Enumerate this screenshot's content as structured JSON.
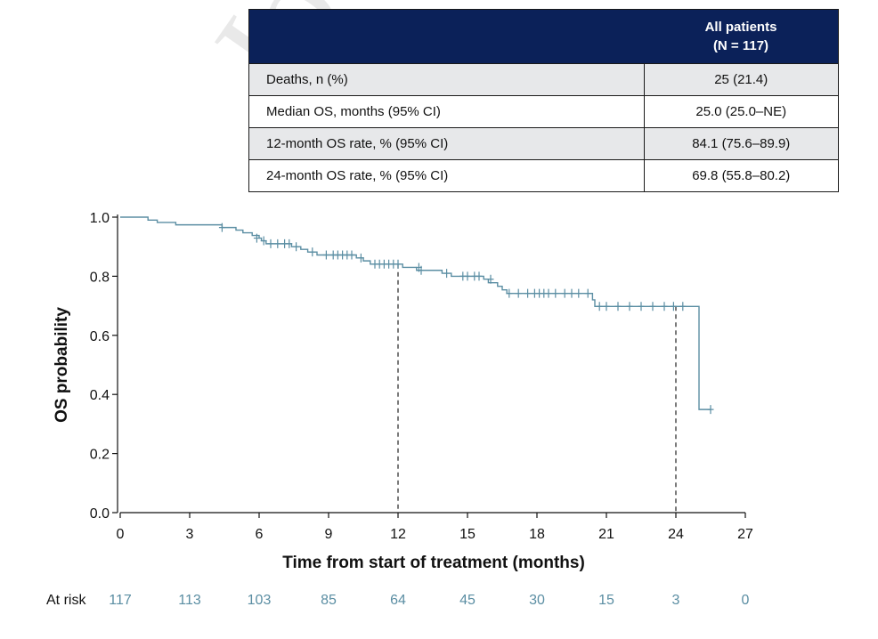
{
  "summary_table": {
    "header": {
      "line1": "All patients",
      "line2": "(N = 117)"
    },
    "rows": [
      {
        "label": "Deaths, n (%)",
        "value": "25 (21.4)"
      },
      {
        "label": "Median OS, months (95% CI)",
        "value": "25.0 (25.0–NE)"
      },
      {
        "label": "12-month OS rate, % (95% CI)",
        "value": "84.1 (75.6–89.9)"
      },
      {
        "label": "24-month OS rate, % (95% CI)",
        "value": "69.8 (55.8–80.2)"
      }
    ]
  },
  "at_risk": {
    "label": "At risk",
    "times": [
      0,
      3,
      6,
      9,
      12,
      15,
      18,
      21,
      24,
      27
    ],
    "values": [
      "117",
      "113",
      "103",
      "85",
      "64",
      "45",
      "30",
      "15",
      "3",
      "0"
    ]
  },
  "colors": {
    "curve": "#5b8ea3",
    "header_bg": "#0b2159",
    "shaded_row": "#e7e8ea",
    "at_risk_text": "#5b8ea3"
  },
  "chart_data": {
    "type": "line",
    "subtype": "kaplan-meier-step",
    "xlabel": "Time from start of treatment (months)",
    "ylabel": "OS probability",
    "xlim": [
      0,
      27
    ],
    "ylim": [
      0,
      1.0
    ],
    "xticks": [
      "0",
      "3",
      "6",
      "9",
      "12",
      "15",
      "18",
      "21",
      "24",
      "27"
    ],
    "yticks": [
      "0.0",
      "0.2",
      "0.4",
      "0.6",
      "0.8",
      "1.0"
    ],
    "series": [
      {
        "name": "All patients",
        "steps": [
          [
            0,
            1.0
          ],
          [
            1.2,
            0.99
          ],
          [
            1.6,
            0.982
          ],
          [
            2.4,
            0.974
          ],
          [
            4.4,
            0.965
          ],
          [
            5.0,
            0.956
          ],
          [
            5.3,
            0.947
          ],
          [
            5.7,
            0.938
          ],
          [
            6.0,
            0.929
          ],
          [
            6.1,
            0.92
          ],
          [
            6.3,
            0.91
          ],
          [
            7.4,
            0.9
          ],
          [
            7.8,
            0.891
          ],
          [
            8.1,
            0.882
          ],
          [
            8.5,
            0.872
          ],
          [
            10.2,
            0.862
          ],
          [
            10.5,
            0.852
          ],
          [
            10.8,
            0.841
          ],
          [
            12.2,
            0.83
          ],
          [
            12.8,
            0.82
          ],
          [
            13.9,
            0.81
          ],
          [
            14.3,
            0.8
          ],
          [
            15.7,
            0.79
          ],
          [
            15.9,
            0.778
          ],
          [
            16.3,
            0.766
          ],
          [
            16.5,
            0.754
          ],
          [
            16.7,
            0.742
          ],
          [
            20.4,
            0.72
          ],
          [
            20.5,
            0.698
          ],
          [
            25.0,
            0.349
          ]
        ],
        "end": 25.5,
        "censored": [
          [
            4.4,
            0.965
          ],
          [
            5.9,
            0.929
          ],
          [
            6.2,
            0.92
          ],
          [
            6.5,
            0.91
          ],
          [
            6.8,
            0.91
          ],
          [
            7.1,
            0.91
          ],
          [
            7.3,
            0.91
          ],
          [
            7.6,
            0.9
          ],
          [
            8.3,
            0.882
          ],
          [
            8.9,
            0.872
          ],
          [
            9.2,
            0.872
          ],
          [
            9.4,
            0.872
          ],
          [
            9.6,
            0.872
          ],
          [
            9.8,
            0.872
          ],
          [
            10.0,
            0.872
          ],
          [
            10.4,
            0.862
          ],
          [
            11.0,
            0.841
          ],
          [
            11.2,
            0.841
          ],
          [
            11.4,
            0.841
          ],
          [
            11.6,
            0.841
          ],
          [
            11.8,
            0.841
          ],
          [
            12.0,
            0.841
          ],
          [
            12.9,
            0.83
          ],
          [
            13.0,
            0.82
          ],
          [
            14.1,
            0.81
          ],
          [
            14.8,
            0.8
          ],
          [
            15.0,
            0.8
          ],
          [
            15.3,
            0.8
          ],
          [
            15.5,
            0.8
          ],
          [
            16.0,
            0.79
          ],
          [
            16.8,
            0.742
          ],
          [
            17.2,
            0.742
          ],
          [
            17.6,
            0.742
          ],
          [
            17.9,
            0.742
          ],
          [
            18.1,
            0.742
          ],
          [
            18.3,
            0.742
          ],
          [
            18.5,
            0.742
          ],
          [
            18.8,
            0.742
          ],
          [
            19.2,
            0.742
          ],
          [
            19.5,
            0.742
          ],
          [
            19.8,
            0.742
          ],
          [
            20.2,
            0.742
          ],
          [
            20.7,
            0.698
          ],
          [
            21.0,
            0.698
          ],
          [
            21.5,
            0.698
          ],
          [
            22.0,
            0.698
          ],
          [
            22.5,
            0.698
          ],
          [
            23.0,
            0.698
          ],
          [
            23.5,
            0.698
          ],
          [
            23.9,
            0.698
          ],
          [
            24.3,
            0.698
          ],
          [
            25.5,
            0.349
          ]
        ]
      }
    ],
    "reference_lines": [
      {
        "x": 12,
        "y": 0.841
      },
      {
        "x": 24,
        "y": 0.698
      }
    ]
  }
}
